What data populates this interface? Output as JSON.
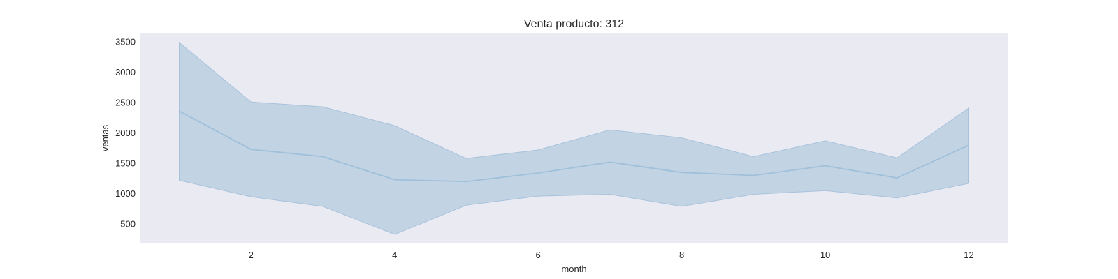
{
  "chart_data": {
    "type": "line",
    "title": "Venta producto: 312",
    "xlabel": "month",
    "ylabel": "ventas",
    "xlim": [
      0.45,
      12.55
    ],
    "ylim": [
      180,
      3650
    ],
    "x_ticks": [
      2,
      4,
      6,
      8,
      10,
      12
    ],
    "y_ticks": [
      500,
      1000,
      1500,
      2000,
      2500,
      3000,
      3500
    ],
    "grid": false,
    "x": [
      1,
      2,
      3,
      4,
      5,
      6,
      7,
      8,
      9,
      10,
      11,
      12
    ],
    "series": [
      {
        "mean": [
          2360,
          1730,
          1610,
          1230,
          1200,
          1340,
          1520,
          1350,
          1300,
          1460,
          1260,
          1800
        ],
        "lower": [
          1220,
          950,
          790,
          330,
          810,
          960,
          990,
          790,
          990,
          1050,
          930,
          1170
        ],
        "upper": [
          3490,
          2510,
          2430,
          2120,
          1580,
          1720,
          2050,
          1920,
          1610,
          1870,
          1590,
          2410
        ]
      }
    ],
    "colors": {
      "plot_bg": "#eaeaf2",
      "line": "#9fc0da",
      "band_fill": "#c2d3e4",
      "band_edge": "#a8c2dc"
    }
  }
}
